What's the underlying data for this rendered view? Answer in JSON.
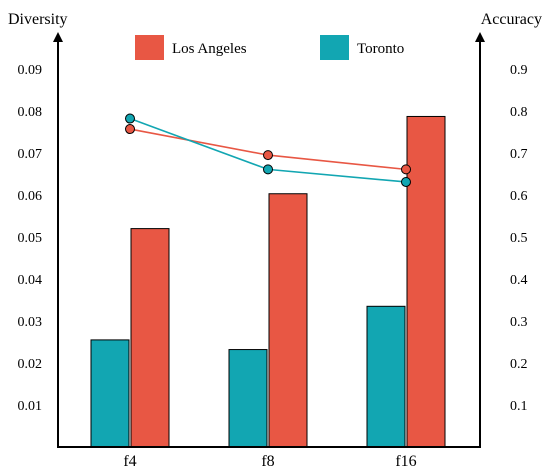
{
  "chart_data": {
    "type": "bar+line",
    "categories": [
      "f4",
      "f8",
      "f16"
    ],
    "left_axis": {
      "label": "Diversity",
      "ylim": [
        0,
        0.1
      ],
      "ticks": [
        "0.01",
        "0.02",
        "0.03",
        "0.04",
        "0.05",
        "0.06",
        "0.07",
        "0.08",
        "0.09"
      ]
    },
    "right_axis": {
      "label": "Accuracy",
      "ylim": [
        0,
        1.0
      ],
      "ticks": [
        "0.1",
        "0.2",
        "0.3",
        "0.4",
        "0.5",
        "0.6",
        "0.7",
        "0.8",
        "0.9"
      ]
    },
    "bar_series": [
      {
        "name": "Toronto",
        "axis": "left",
        "color": "#12A6B2",
        "values": [
          0.0255,
          0.0232,
          0.0335
        ]
      },
      {
        "name": "Los Angeles",
        "axis": "left",
        "color": "#E85744",
        "values": [
          0.052,
          0.0603,
          0.0787
        ]
      }
    ],
    "line_series": [
      {
        "name": "Los Angeles",
        "axis": "right",
        "color": "#E85744",
        "values": [
          0.757,
          0.695,
          0.661
        ]
      },
      {
        "name": "Toronto",
        "axis": "right",
        "color": "#12A6B2",
        "values": [
          0.782,
          0.661,
          0.631
        ]
      }
    ],
    "legend": {
      "placement": "top-center",
      "items": [
        {
          "label": "Los Angeles",
          "color": "#E85744"
        },
        {
          "label": "Toronto",
          "color": "#12A6B2"
        }
      ]
    },
    "grid": false
  }
}
